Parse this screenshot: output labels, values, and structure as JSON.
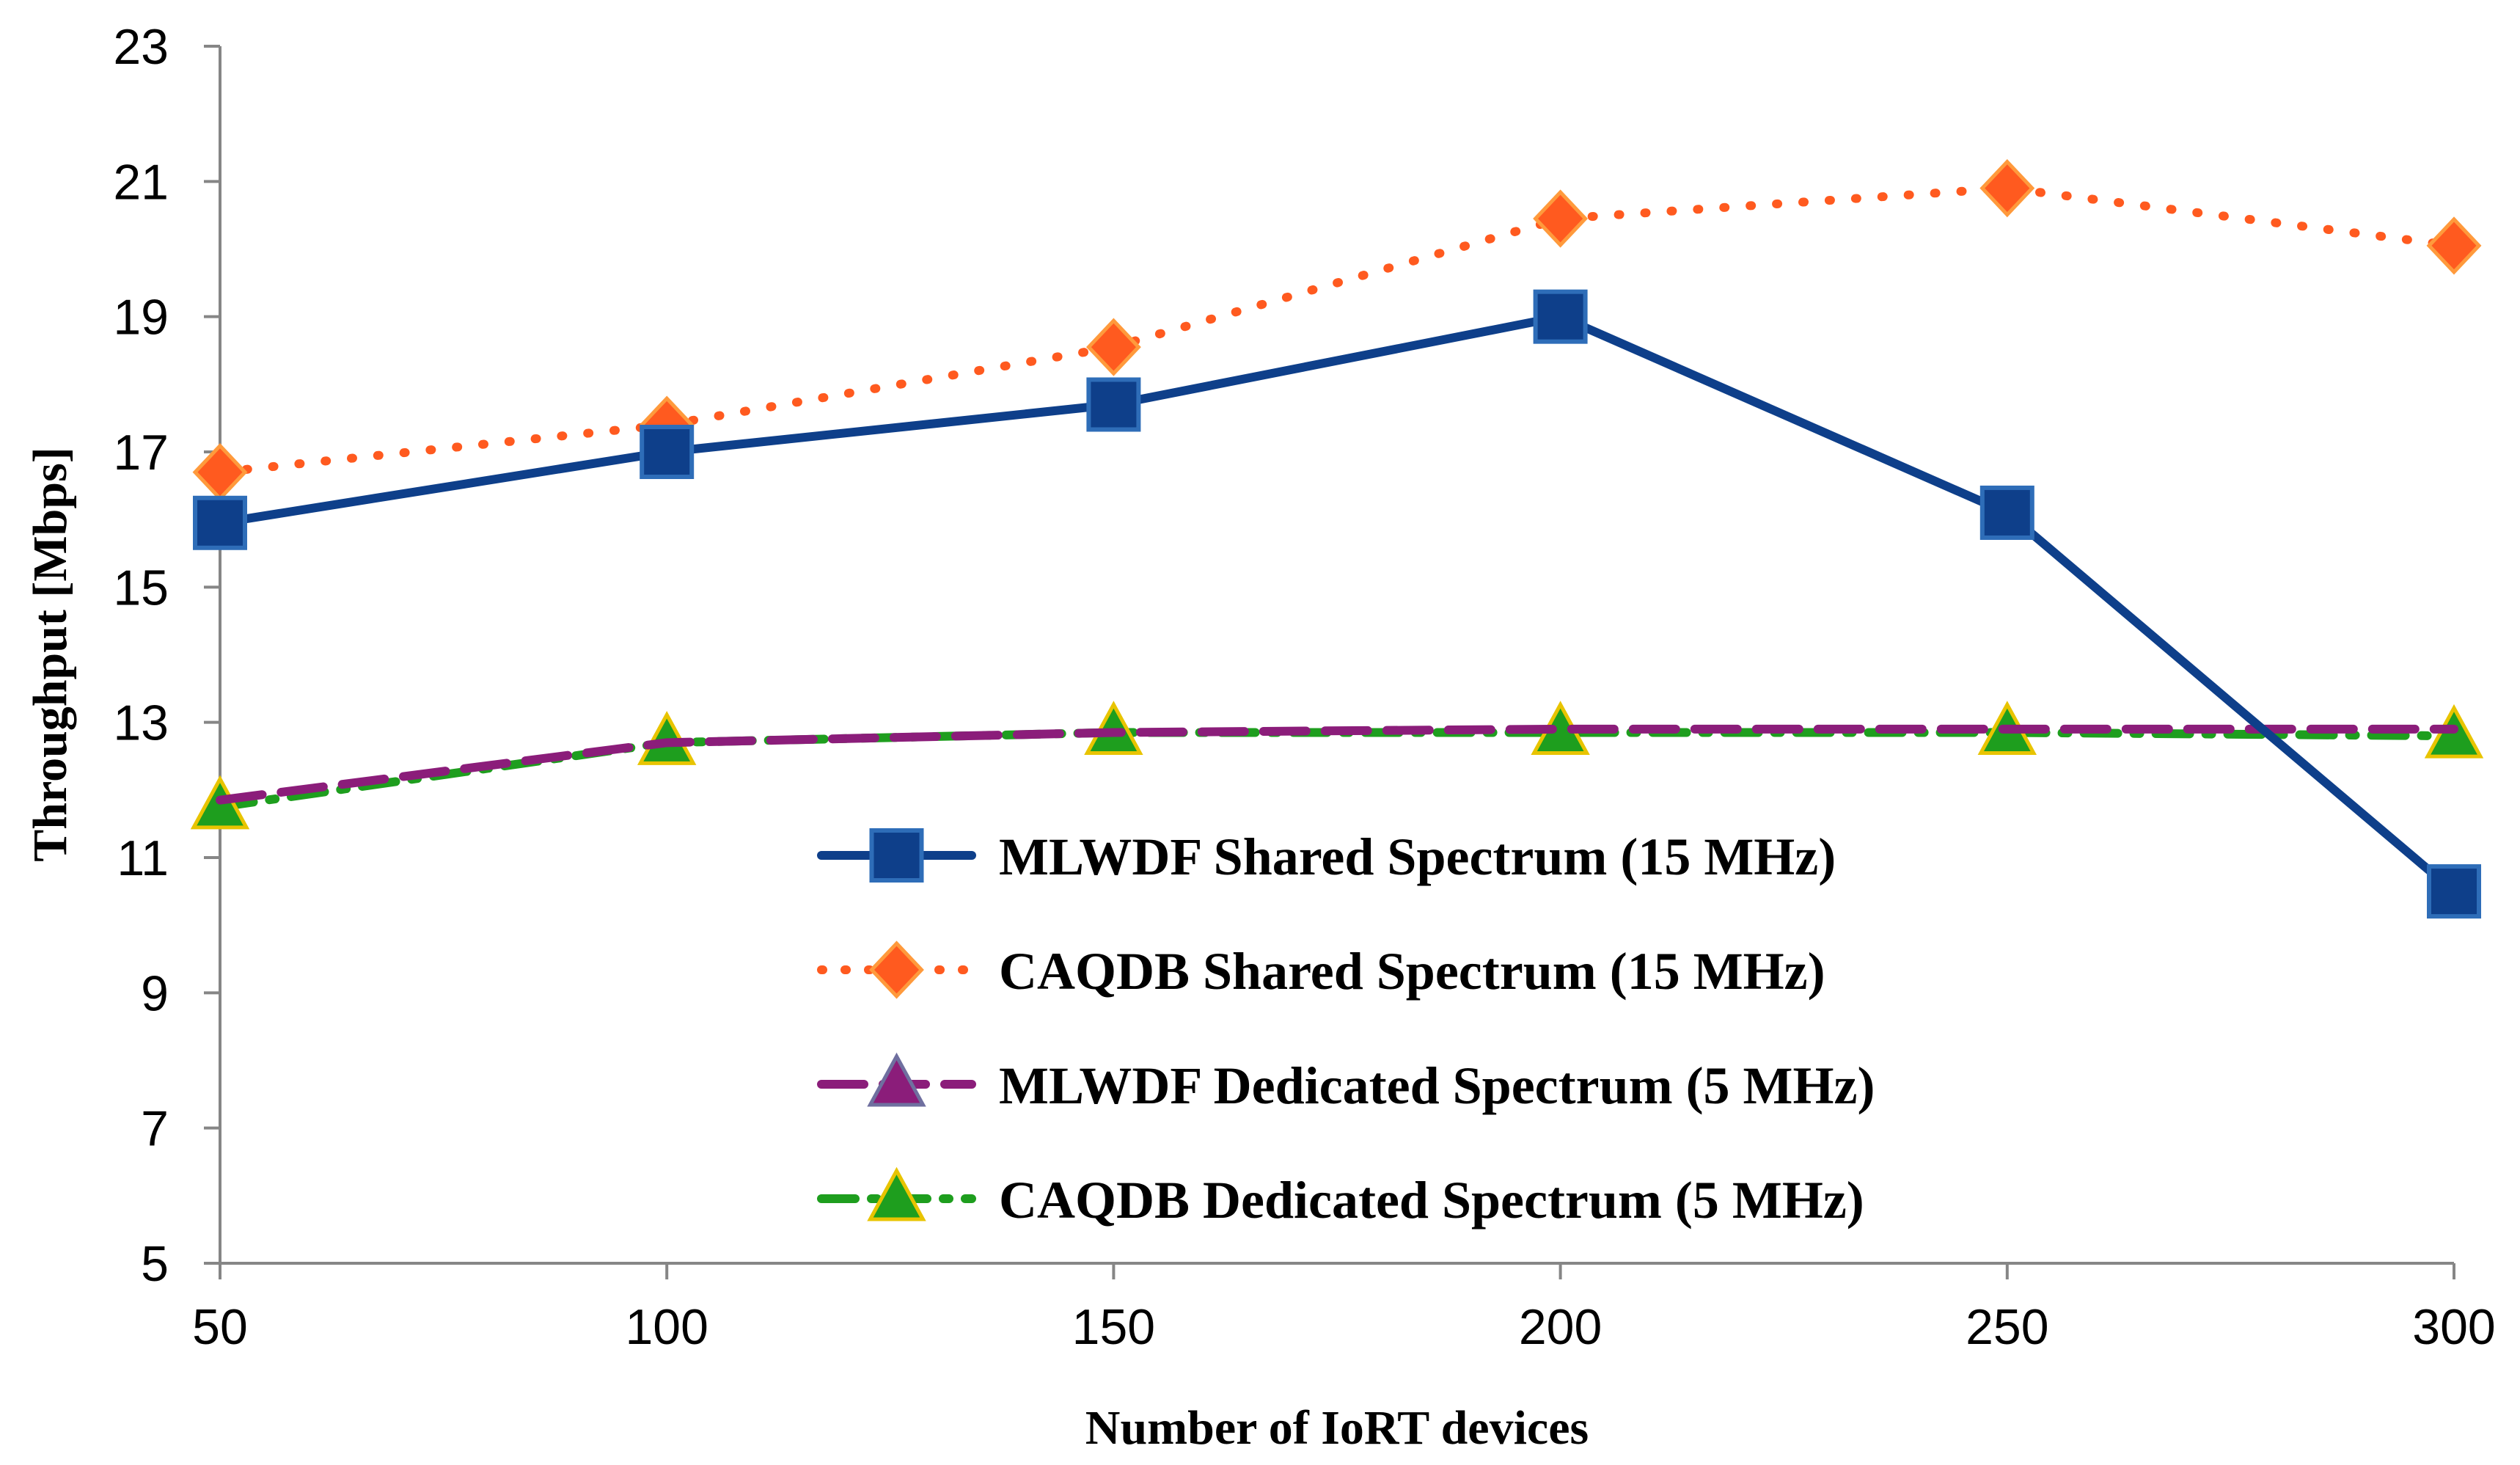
{
  "chart_data": {
    "type": "line",
    "title": "",
    "xlabel": "Number of IoRT devices",
    "ylabel": "Throughput [Mbps]",
    "x": [
      50,
      100,
      150,
      200,
      250,
      300
    ],
    "x_ticks": [
      "50",
      "100",
      "150",
      "200",
      "250",
      "300"
    ],
    "y_ticks": [
      "5",
      "7",
      "9",
      "11",
      "13",
      "15",
      "17",
      "19",
      "21",
      "23"
    ],
    "ylim": [
      5,
      23
    ],
    "grid": false,
    "legend_position": "lower-right",
    "series": [
      {
        "name": "MLWDF Shared Spectrum (15 MHz)",
        "values": [
          15.95,
          17.0,
          17.7,
          19.0,
          16.1,
          10.5
        ],
        "color": "#0E3F8A",
        "marker": "square",
        "line_style": "solid"
      },
      {
        "name": "CAQDB  Shared Spectrum (15 MHz)",
        "values": [
          16.7,
          17.4,
          18.55,
          20.45,
          20.9,
          20.05
        ],
        "color": "#FF5A1F",
        "marker": "diamond",
        "line_style": "dotted"
      },
      {
        "name": "MLWDF Dedicated Spectrum (5 MHz)",
        "values": [
          11.85,
          12.7,
          12.85,
          12.9,
          12.9,
          12.9
        ],
        "color": "#8B1D7A",
        "marker": "triangle",
        "line_style": "dashed"
      },
      {
        "name": "CAQDB Dedicated Spectrum (5 MHz)",
        "values": [
          11.75,
          12.7,
          12.85,
          12.85,
          12.85,
          12.8
        ],
        "color": "#1E9E1E",
        "marker": "triangle",
        "line_style": "dash-dot"
      }
    ]
  }
}
